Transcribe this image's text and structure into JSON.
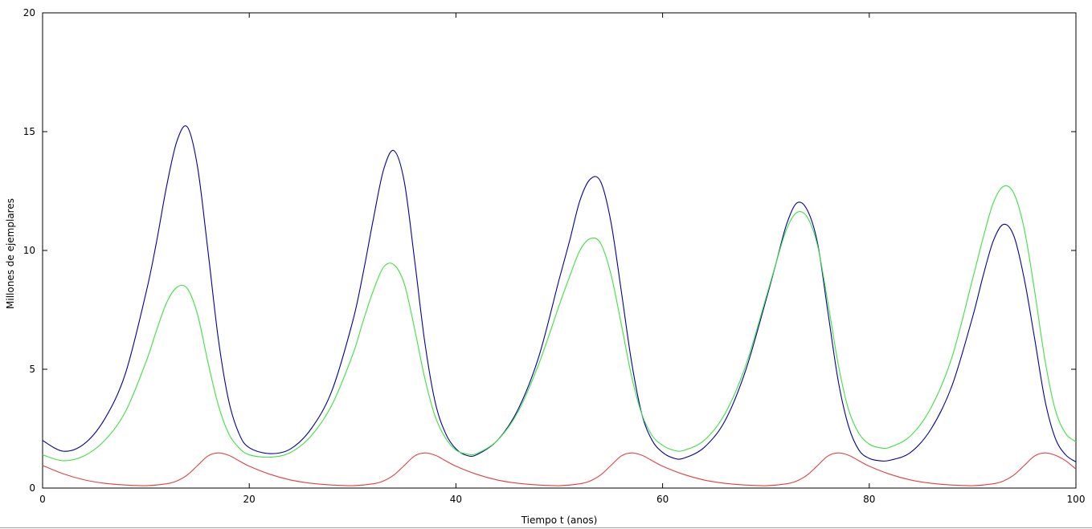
{
  "chart_data": {
    "type": "line",
    "title": "",
    "xlabel": "Tiempo t (anos)",
    "ylabel": "Millones de ejemplares",
    "xlim": [
      0,
      100
    ],
    "ylim": [
      0,
      20
    ],
    "xticks": [
      0,
      20,
      40,
      60,
      80,
      100
    ],
    "yticks": [
      0,
      5,
      10,
      15,
      20
    ],
    "grid": false,
    "legend": "none",
    "series": [
      {
        "color": "#0000a0",
        "x": [
          0,
          2,
          4,
          6,
          8,
          10,
          11,
          12,
          13,
          14,
          15,
          16,
          17,
          18,
          19,
          20,
          22,
          24,
          26,
          28,
          30,
          31,
          32,
          33,
          34,
          35,
          36,
          37,
          38,
          39,
          40,
          41,
          42,
          44,
          46,
          48,
          50,
          51,
          52,
          53,
          54,
          55,
          56,
          57,
          58,
          59,
          60,
          61,
          62,
          64,
          66,
          68,
          70,
          71,
          72,
          73,
          74,
          75,
          76,
          77,
          78,
          79,
          80,
          81,
          82,
          84,
          86,
          88,
          90,
          91,
          92,
          93,
          94,
          95,
          96,
          97,
          98,
          99,
          100
        ],
        "values": [
          2.0,
          1.55,
          1.85,
          2.9,
          4.8,
          8.2,
          10.3,
          12.7,
          14.6,
          15.2,
          13.5,
          10.0,
          6.3,
          3.7,
          2.3,
          1.7,
          1.45,
          1.65,
          2.5,
          4.1,
          7.0,
          9.0,
          11.3,
          13.4,
          14.2,
          12.9,
          9.6,
          6.1,
          3.6,
          2.3,
          1.65,
          1.38,
          1.4,
          2.0,
          3.3,
          5.5,
          8.8,
          10.4,
          12.1,
          13.0,
          12.9,
          11.2,
          8.3,
          5.3,
          3.1,
          2.0,
          1.5,
          1.27,
          1.25,
          1.7,
          2.8,
          4.9,
          7.9,
          9.5,
          11.1,
          12.0,
          11.7,
          10.3,
          7.4,
          4.5,
          2.6,
          1.6,
          1.25,
          1.15,
          1.17,
          1.5,
          2.5,
          4.3,
          7.2,
          8.9,
          10.4,
          11.1,
          10.6,
          8.8,
          6.3,
          3.7,
          2.1,
          1.4,
          1.1
        ]
      },
      {
        "color": "#40e040",
        "x": [
          0,
          2,
          4,
          6,
          8,
          10,
          11,
          12,
          13,
          14,
          15,
          16,
          17,
          18,
          19,
          20,
          22,
          24,
          26,
          28,
          30,
          31,
          32,
          33,
          34,
          35,
          36,
          37,
          38,
          39,
          40,
          41,
          42,
          44,
          46,
          48,
          50,
          51,
          52,
          53,
          54,
          55,
          56,
          57,
          58,
          59,
          60,
          61,
          62,
          64,
          66,
          68,
          70,
          71,
          72,
          73,
          74,
          75,
          76,
          77,
          78,
          79,
          80,
          81,
          82,
          84,
          86,
          88,
          90,
          91,
          92,
          93,
          94,
          95,
          96,
          97,
          98,
          99,
          100
        ],
        "values": [
          1.4,
          1.15,
          1.35,
          2.0,
          3.2,
          5.3,
          6.6,
          7.8,
          8.45,
          8.4,
          7.3,
          5.3,
          3.5,
          2.3,
          1.7,
          1.4,
          1.3,
          1.5,
          2.2,
          3.5,
          5.6,
          7.0,
          8.3,
          9.3,
          9.4,
          8.6,
          6.7,
          4.6,
          3.0,
          2.1,
          1.6,
          1.44,
          1.45,
          2.0,
          3.2,
          5.2,
          7.7,
          8.9,
          10.0,
          10.5,
          10.3,
          9.0,
          6.9,
          4.7,
          3.1,
          2.2,
          1.8,
          1.6,
          1.58,
          2.0,
          3.1,
          5.1,
          8.0,
          9.5,
          10.9,
          11.6,
          11.4,
          10.2,
          7.8,
          5.2,
          3.3,
          2.3,
          1.85,
          1.7,
          1.72,
          2.2,
          3.4,
          5.5,
          8.8,
          10.5,
          12.0,
          12.7,
          12.4,
          10.9,
          8.3,
          5.4,
          3.3,
          2.3,
          1.95
        ]
      },
      {
        "color": "#e04040",
        "x": [
          0,
          2,
          4,
          6,
          8,
          10,
          12,
          13,
          14,
          15,
          16,
          17,
          18,
          19,
          20,
          22,
          24,
          26,
          28,
          30,
          32,
          33,
          34,
          35,
          36,
          37,
          38,
          39,
          40,
          42,
          44,
          46,
          48,
          50,
          52,
          53,
          54,
          55,
          56,
          57,
          58,
          59,
          60,
          62,
          64,
          66,
          68,
          70,
          72,
          73,
          74,
          75,
          76,
          77,
          78,
          79,
          80,
          82,
          84,
          86,
          88,
          90,
          92,
          93,
          94,
          95,
          96,
          97,
          98,
          99,
          100
        ],
        "values": [
          0.95,
          0.6,
          0.35,
          0.2,
          0.13,
          0.1,
          0.18,
          0.3,
          0.55,
          0.95,
          1.35,
          1.48,
          1.38,
          1.15,
          0.92,
          0.58,
          0.34,
          0.2,
          0.13,
          0.1,
          0.18,
          0.3,
          0.55,
          0.95,
          1.35,
          1.48,
          1.38,
          1.15,
          0.92,
          0.58,
          0.34,
          0.2,
          0.13,
          0.1,
          0.18,
          0.3,
          0.55,
          0.95,
          1.35,
          1.48,
          1.38,
          1.15,
          0.92,
          0.58,
          0.34,
          0.2,
          0.13,
          0.1,
          0.18,
          0.3,
          0.55,
          0.95,
          1.35,
          1.48,
          1.38,
          1.15,
          0.92,
          0.58,
          0.34,
          0.2,
          0.13,
          0.1,
          0.18,
          0.3,
          0.55,
          0.95,
          1.35,
          1.48,
          1.38,
          1.15,
          0.8
        ]
      }
    ]
  }
}
